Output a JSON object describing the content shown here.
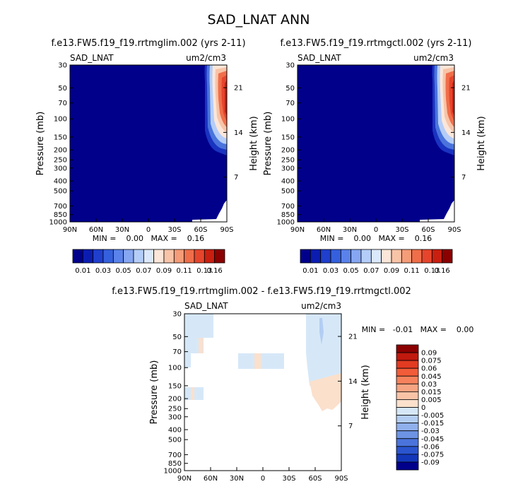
{
  "title": "SAD_LNAT ANN",
  "colors": {
    "dark_blue": "#00008b",
    "light_blue": "#d6e8f8",
    "peach": "#fbe0cc",
    "accent_red": "#8b0000"
  },
  "panels": [
    {
      "subtitle": "f.e13.FW5.f19_f19.rrtmglim.002 (yrs 2-11)",
      "var": "SAD_LNAT",
      "units": "um2/cm3",
      "min_max": "MIN =    0.00   MAX =    0.16"
    },
    {
      "subtitle": "f.e13.FW5.f19_f19.rrtmgctl.002 (yrs 2-11)",
      "var": "SAD_LNAT",
      "units": "um2/cm3",
      "min_max": "MIN =    0.00   MAX =    0.16"
    },
    {
      "subtitle": "f.e13.FW5.f19_f19.rrtmglim.002 - f.e13.FW5.f19_f19.rrtmgctl.002",
      "var": "SAD_LNAT",
      "units": "um2/cm3",
      "min_max": "MIN =   -0.01   MAX =    0.00"
    }
  ],
  "chart_data": [
    {
      "type": "contour",
      "title": "f.e13.FW5.f19_f19.rrtmglim.002 (yrs 2-11)",
      "ylabel": "Pressure (mb)",
      "y2label": "Height (km)",
      "x_ticks": [
        "90N",
        "60N",
        "30N",
        "0",
        "30S",
        "60S",
        "90S"
      ],
      "x_values": [
        90,
        60,
        30,
        0,
        -30,
        -60,
        -90
      ],
      "p_ticks": [
        "30",
        "50",
        "70",
        "100",
        "150",
        "200",
        "250",
        "300",
        "400",
        "500",
        "700",
        "850",
        "1000"
      ],
      "p_values": [
        30,
        50,
        70,
        100,
        150,
        200,
        250,
        300,
        400,
        500,
        700,
        850,
        1000
      ],
      "h_ticks": [
        "21",
        "14",
        "7"
      ],
      "h_values": [
        21,
        14,
        7
      ],
      "min": 0.0,
      "max": 0.16,
      "colorbar_labels": [
        "0.01",
        "0.03",
        "0.05",
        "0.07",
        "0.09",
        "0.11",
        "0.13",
        "0.16"
      ],
      "colorbar_colors": [
        "#00008b",
        "#0b1db0",
        "#1f3fcc",
        "#3560dd",
        "#5a82ea",
        "#86a6f2",
        "#b4cdf8",
        "#dbe8fb",
        "#fbe6d9",
        "#f8c4a8",
        "#f59c78",
        "#f06e4a",
        "#e6452c",
        "#c91f10",
        "#8b0000"
      ]
    },
    {
      "type": "contour",
      "title": "f.e13.FW5.f19_f19.rrtmgctl.002 (yrs 2-11)",
      "ylabel": "Pressure (mb)",
      "y2label": "Height (km)",
      "x_ticks": [
        "90N",
        "60N",
        "30N",
        "0",
        "30S",
        "60S",
        "90S"
      ],
      "x_values": [
        90,
        60,
        30,
        0,
        -30,
        -60,
        -90
      ],
      "p_ticks": [
        "30",
        "50",
        "70",
        "100",
        "150",
        "200",
        "250",
        "300",
        "400",
        "500",
        "700",
        "850",
        "1000"
      ],
      "p_values": [
        30,
        50,
        70,
        100,
        150,
        200,
        250,
        300,
        400,
        500,
        700,
        850,
        1000
      ],
      "h_ticks": [
        "21",
        "14",
        "7"
      ],
      "h_values": [
        21,
        14,
        7
      ],
      "min": 0.0,
      "max": 0.16,
      "colorbar_labels": [
        "0.01",
        "0.03",
        "0.05",
        "0.07",
        "0.09",
        "0.11",
        "0.13",
        "0.16"
      ],
      "colorbar_colors": [
        "#00008b",
        "#0b1db0",
        "#1f3fcc",
        "#3560dd",
        "#5a82ea",
        "#86a6f2",
        "#b4cdf8",
        "#dbe8fb",
        "#fbe6d9",
        "#f8c4a8",
        "#f59c78",
        "#f06e4a",
        "#e6452c",
        "#c91f10",
        "#8b0000"
      ]
    },
    {
      "type": "contour-difference",
      "title": "f.e13.FW5.f19_f19.rrtmglim.002 - f.e13.FW5.f19_f19.rrtmgctl.002",
      "ylabel": "Pressure (mb)",
      "y2label": "Height (km)",
      "x_ticks": [
        "90N",
        "60N",
        "30N",
        "0",
        "30S",
        "60S",
        "90S"
      ],
      "x_values": [
        90,
        60,
        30,
        0,
        -30,
        -60,
        -90
      ],
      "p_ticks": [
        "30",
        "50",
        "70",
        "100",
        "150",
        "200",
        "250",
        "300",
        "400",
        "500",
        "700",
        "850",
        "1000"
      ],
      "p_values": [
        30,
        50,
        70,
        100,
        150,
        200,
        250,
        300,
        400,
        500,
        700,
        850,
        1000
      ],
      "h_ticks": [
        "21",
        "14",
        "7"
      ],
      "h_values": [
        21,
        14,
        7
      ],
      "min": -0.01,
      "max": 0.0,
      "colorbar_labels": [
        "0.09",
        "0.075",
        "0.06",
        "0.045",
        "0.03",
        "0.015",
        "0.005",
        "0",
        "-0.005",
        "-0.015",
        "-0.03",
        "-0.045",
        "-0.06",
        "-0.075",
        "-0.09"
      ],
      "colorbar_colors": [
        "#8b0000",
        "#c1190d",
        "#e23b22",
        "#f25c38",
        "#f5825c",
        "#f7a482",
        "#f9c3a6",
        "#fbe0cc",
        "#d6e8f8",
        "#b3cdf3",
        "#8fb0ec",
        "#6c93e4",
        "#4a74dc",
        "#2a55cf",
        "#1237b9",
        "#00008b"
      ]
    }
  ]
}
